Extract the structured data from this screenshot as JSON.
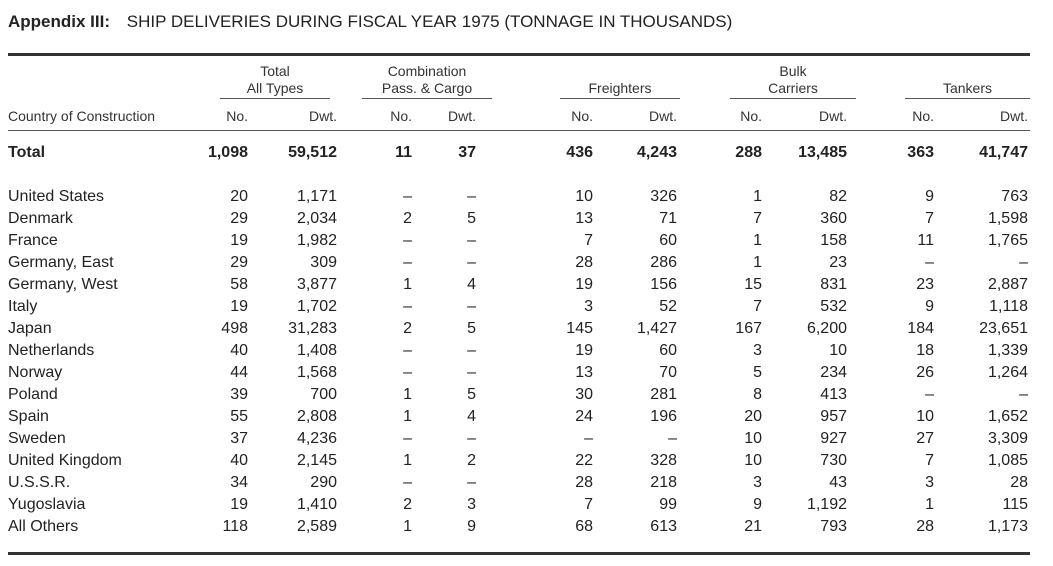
{
  "title": {
    "lead": "Appendix III:",
    "rest": "SHIP DELIVERIES DURING FISCAL YEAR 1975 (TONNAGE IN THOUSANDS)"
  },
  "groups": [
    {
      "line1": "Total",
      "line2": "All Types"
    },
    {
      "line1": "Combination",
      "line2": "Pass. & Cargo"
    },
    {
      "line1": "",
      "line2": "Freighters"
    },
    {
      "line1": "Bulk",
      "line2": "Carriers"
    },
    {
      "line1": "",
      "line2": "Tankers"
    }
  ],
  "subheaders": {
    "country": "Country of Construction",
    "no": "No.",
    "dwt": "Dwt."
  },
  "total": {
    "name": "Total",
    "values": [
      "1,098",
      "59,512",
      "11",
      "37",
      "436",
      "4,243",
      "288",
      "13,485",
      "363",
      "41,747"
    ]
  },
  "rows": [
    {
      "name": "United States",
      "values": [
        "20",
        "1,171",
        "–",
        "–",
        "10",
        "326",
        "1",
        "82",
        "9",
        "763"
      ]
    },
    {
      "name": "Denmark",
      "values": [
        "29",
        "2,034",
        "2",
        "5",
        "13",
        "71",
        "7",
        "360",
        "7",
        "1,598"
      ]
    },
    {
      "name": "France",
      "values": [
        "19",
        "1,982",
        "–",
        "–",
        "7",
        "60",
        "1",
        "158",
        "11",
        "1,765"
      ]
    },
    {
      "name": "Germany, East",
      "values": [
        "29",
        "309",
        "–",
        "–",
        "28",
        "286",
        "1",
        "23",
        "–",
        "–"
      ]
    },
    {
      "name": "Germany, West",
      "values": [
        "58",
        "3,877",
        "1",
        "4",
        "19",
        "156",
        "15",
        "831",
        "23",
        "2,887"
      ]
    },
    {
      "name": "Italy",
      "values": [
        "19",
        "1,702",
        "–",
        "–",
        "3",
        "52",
        "7",
        "532",
        "9",
        "1,118"
      ]
    },
    {
      "name": "Japan",
      "values": [
        "498",
        "31,283",
        "2",
        "5",
        "145",
        "1,427",
        "167",
        "6,200",
        "184",
        "23,651"
      ]
    },
    {
      "name": "Netherlands",
      "values": [
        "40",
        "1,408",
        "–",
        "–",
        "19",
        "60",
        "3",
        "10",
        "18",
        "1,339"
      ]
    },
    {
      "name": "Norway",
      "values": [
        "44",
        "1,568",
        "–",
        "–",
        "13",
        "70",
        "5",
        "234",
        "26",
        "1,264"
      ]
    },
    {
      "name": "Poland",
      "values": [
        "39",
        "700",
        "1",
        "5",
        "30",
        "281",
        "8",
        "413",
        "–",
        "–"
      ]
    },
    {
      "name": "Spain",
      "values": [
        "55",
        "2,808",
        "1",
        "4",
        "24",
        "196",
        "20",
        "957",
        "10",
        "1,652"
      ]
    },
    {
      "name": "Sweden",
      "values": [
        "37",
        "4,236",
        "–",
        "–",
        "–",
        "–",
        "10",
        "927",
        "27",
        "3,309"
      ]
    },
    {
      "name": "United Kingdom",
      "values": [
        "40",
        "2,145",
        "1",
        "2",
        "22",
        "328",
        "10",
        "730",
        "7",
        "1,085"
      ]
    },
    {
      "name": "U.S.S.R.",
      "values": [
        "34",
        "290",
        "–",
        "–",
        "28",
        "218",
        "3",
        "43",
        "3",
        "28"
      ]
    },
    {
      "name": "Yugoslavia",
      "values": [
        "19",
        "1,410",
        "2",
        "3",
        "7",
        "99",
        "9",
        "1,192",
        "1",
        "115"
      ]
    },
    {
      "name": "All Others",
      "values": [
        "118",
        "2,589",
        "1",
        "9",
        "68",
        "613",
        "21",
        "793",
        "28",
        "1,173"
      ]
    }
  ]
}
